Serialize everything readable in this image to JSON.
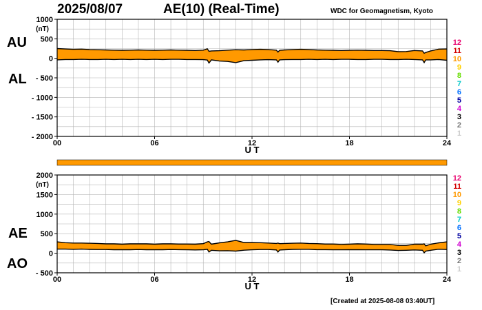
{
  "header": {
    "date": "2025/08/07",
    "title": "AE(10) (Real-Time)",
    "source": "WDC for Geomagnetism, Kyoto"
  },
  "footer": {
    "created": "[Created at 2025-08-08 03:40UT]"
  },
  "legend": {
    "entries": [
      {
        "label": "12",
        "color": "#e8006e"
      },
      {
        "label": "11",
        "color": "#d40000"
      },
      {
        "label": "10",
        "color": "#ff9900"
      },
      {
        "label": "9",
        "color": "#ffd000"
      },
      {
        "label": "8",
        "color": "#66dd00"
      },
      {
        "label": "7",
        "color": "#00c8c8"
      },
      {
        "label": "6",
        "color": "#0070ff"
      },
      {
        "label": "5",
        "color": "#0000a0"
      },
      {
        "label": "4",
        "color": "#d000d0"
      },
      {
        "label": "3",
        "color": "#000000"
      },
      {
        "label": "2",
        "color": "#777777"
      },
      {
        "label": "1",
        "color": "#cccccc"
      }
    ]
  },
  "colors": {
    "fill": "#ff9900",
    "line": "#000000",
    "grid": "#b4b4b4"
  },
  "chart_data": [
    {
      "type": "area",
      "name_labels": [
        "AU",
        "AL"
      ],
      "unit": "(nT)",
      "xlabel": "U T",
      "xlim": [
        0,
        24
      ],
      "ylim": [
        -2000,
        1000
      ],
      "yticks": [
        1000,
        500,
        0,
        -500,
        -1000,
        -1500,
        -2000
      ],
      "ytick_labels": [
        "1000",
        "500",
        "0",
        "- 500",
        "- 1000",
        "- 1500",
        "- 2000"
      ],
      "xticks": [
        0,
        6,
        12,
        18,
        24
      ],
      "xtick_labels": [
        "00",
        "06",
        "12",
        "18",
        "24"
      ],
      "grid": true,
      "x": [
        0,
        0.5,
        1,
        1.5,
        2,
        2.5,
        3,
        3.5,
        4,
        4.5,
        5,
        5.5,
        6,
        6.5,
        7,
        7.5,
        8,
        8.5,
        9,
        9.25,
        9.35,
        9.5,
        10,
        10.5,
        11,
        11.5,
        12,
        12.5,
        13,
        13.5,
        13.6,
        13.7,
        14,
        14.5,
        15,
        15.5,
        16,
        16.5,
        17,
        17.5,
        18,
        18.5,
        19,
        19.5,
        20,
        20.5,
        21,
        21.5,
        22,
        22.5,
        22.6,
        22.7,
        23,
        23.5,
        24
      ],
      "series": [
        {
          "name": "AU",
          "values": [
            250,
            240,
            230,
            235,
            225,
            220,
            215,
            210,
            205,
            210,
            215,
            210,
            205,
            210,
            215,
            210,
            205,
            200,
            210,
            245,
            180,
            190,
            195,
            210,
            220,
            215,
            225,
            230,
            225,
            210,
            160,
            205,
            215,
            225,
            230,
            225,
            215,
            210,
            205,
            200,
            205,
            210,
            205,
            200,
            200,
            195,
            170,
            175,
            200,
            190,
            130,
            150,
            190,
            235,
            240
          ]
        },
        {
          "name": "AL",
          "values": [
            -40,
            -30,
            -30,
            -25,
            -30,
            -30,
            -25,
            -30,
            -25,
            -30,
            -25,
            -30,
            -25,
            -30,
            -25,
            -25,
            -30,
            -30,
            -35,
            -45,
            -120,
            -40,
            -70,
            -80,
            -110,
            -60,
            -50,
            -40,
            -35,
            -40,
            -100,
            -40,
            -35,
            -30,
            -30,
            -25,
            -30,
            -25,
            -30,
            -25,
            -25,
            -30,
            -30,
            -25,
            -25,
            -30,
            -30,
            -25,
            -30,
            -40,
            -110,
            -40,
            -40,
            -30,
            -50
          ]
        }
      ]
    },
    {
      "type": "area",
      "name_labels": [
        "AE",
        "AO"
      ],
      "unit": "(nT)",
      "xlabel": "U T",
      "xlim": [
        0,
        24
      ],
      "ylim": [
        -500,
        2000
      ],
      "yticks": [
        2000,
        1500,
        1000,
        500,
        0,
        -500
      ],
      "ytick_labels": [
        "2000",
        "1500",
        "1000",
        "500",
        "0",
        "- 500"
      ],
      "xticks": [
        0,
        6,
        12,
        18,
        24
      ],
      "xtick_labels": [
        "00",
        "06",
        "12",
        "18",
        "24"
      ],
      "grid": true,
      "x": [
        0,
        0.5,
        1,
        1.5,
        2,
        2.5,
        3,
        3.5,
        4,
        4.5,
        5,
        5.5,
        6,
        6.5,
        7,
        7.5,
        8,
        8.5,
        9,
        9.25,
        9.35,
        9.5,
        10,
        10.5,
        11,
        11.5,
        12,
        12.5,
        13,
        13.5,
        13.6,
        13.7,
        14,
        14.5,
        15,
        15.5,
        16,
        16.5,
        17,
        17.5,
        18,
        18.5,
        19,
        19.5,
        20,
        20.5,
        21,
        21.5,
        22,
        22.5,
        22.6,
        22.7,
        23,
        23.5,
        24
      ],
      "series": [
        {
          "name": "AE",
          "values": [
            290,
            270,
            260,
            260,
            255,
            250,
            240,
            240,
            230,
            240,
            240,
            240,
            230,
            240,
            240,
            235,
            235,
            230,
            245,
            290,
            300,
            230,
            265,
            290,
            330,
            275,
            275,
            270,
            260,
            250,
            260,
            245,
            250,
            255,
            260,
            250,
            245,
            235,
            235,
            225,
            230,
            240,
            235,
            225,
            225,
            225,
            200,
            200,
            230,
            230,
            240,
            190,
            230,
            265,
            290
          ]
        },
        {
          "name": "AO",
          "values": [
            105,
            105,
            100,
            105,
            98,
            95,
            95,
            90,
            90,
            90,
            95,
            90,
            90,
            90,
            95,
            92,
            88,
            85,
            88,
            100,
            30,
            75,
            62,
            65,
            55,
            78,
            88,
            95,
            95,
            85,
            30,
            82,
            90,
            98,
            100,
            100,
            92,
            92,
            88,
            88,
            90,
            90,
            88,
            88,
            88,
            82,
            70,
            75,
            85,
            75,
            10,
            55,
            75,
            102,
            95
          ]
        }
      ]
    }
  ]
}
